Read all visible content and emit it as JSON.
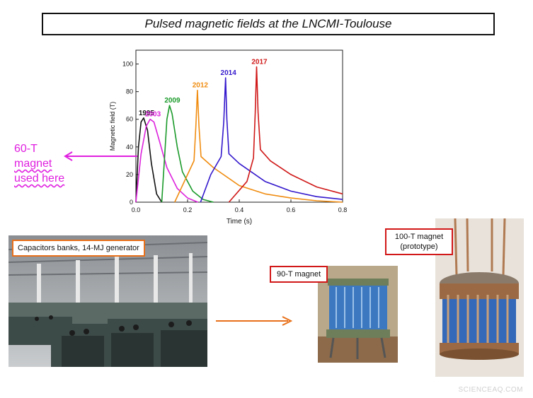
{
  "title": "Pulsed magnetic fields at the LNCMI-Toulouse",
  "chart_data": {
    "type": "line",
    "xlabel": "Time (s)",
    "ylabel": "Magnetic field (T)",
    "xlim": [
      0,
      0.8
    ],
    "ylim": [
      0,
      110
    ],
    "xticks": [
      "0.0",
      "0.2",
      "0.4",
      "0.6",
      "0.8"
    ],
    "yticks": [
      "0",
      "20",
      "40",
      "60",
      "80",
      "100"
    ],
    "series": [
      {
        "name": "1995",
        "color": "#111111",
        "x": [
          0,
          0.01,
          0.02,
          0.03,
          0.045,
          0.06,
          0.08,
          0.1
        ],
        "y": [
          0,
          40,
          58,
          61,
          52,
          28,
          6,
          0
        ]
      },
      {
        "name": "2003",
        "color": "#dd22dd",
        "x": [
          0,
          0.02,
          0.04,
          0.055,
          0.07,
          0.09,
          0.12,
          0.16,
          0.2,
          0.24
        ],
        "y": [
          0,
          35,
          55,
          60,
          58,
          45,
          25,
          10,
          3,
          0
        ]
      },
      {
        "name": "2009",
        "color": "#1a9a2a",
        "x": [
          0.1,
          0.11,
          0.12,
          0.13,
          0.14,
          0.16,
          0.18,
          0.22,
          0.26,
          0.3
        ],
        "y": [
          0,
          30,
          60,
          70,
          64,
          40,
          22,
          8,
          2,
          0
        ]
      },
      {
        "name": "2012",
        "color": "#f08c10",
        "x": [
          0.15,
          0.2,
          0.225,
          0.232,
          0.238,
          0.244,
          0.252,
          0.3,
          0.4,
          0.5,
          0.6,
          0.7,
          0.8
        ],
        "y": [
          0,
          20,
          30,
          55,
          81,
          55,
          33,
          25,
          12,
          6,
          3,
          1,
          0
        ]
      },
      {
        "name": "2014",
        "color": "#3318cc",
        "x": [
          0.25,
          0.29,
          0.33,
          0.34,
          0.347,
          0.352,
          0.36,
          0.4,
          0.5,
          0.6,
          0.7,
          0.8
        ],
        "y": [
          0,
          20,
          33,
          58,
          90,
          60,
          35,
          28,
          15,
          8,
          4,
          2
        ]
      },
      {
        "name": "2017",
        "color": "#d01818",
        "x": [
          0.36,
          0.43,
          0.455,
          0.462,
          0.467,
          0.473,
          0.482,
          0.52,
          0.6,
          0.7,
          0.8
        ],
        "y": [
          0,
          15,
          32,
          65,
          98,
          65,
          38,
          30,
          20,
          11,
          6
        ]
      }
    ]
  },
  "side_label": {
    "line1": "60-T",
    "line2": "magnet",
    "line3": "used here"
  },
  "tags": {
    "capacitors": "Capacitors banks, 14-MJ generator",
    "magnet_90": "90-T magnet",
    "magnet_100_line1": "100-T magnet",
    "magnet_100_line2": "(prototype)"
  },
  "watermark": "SCIENCEAQ.COM"
}
